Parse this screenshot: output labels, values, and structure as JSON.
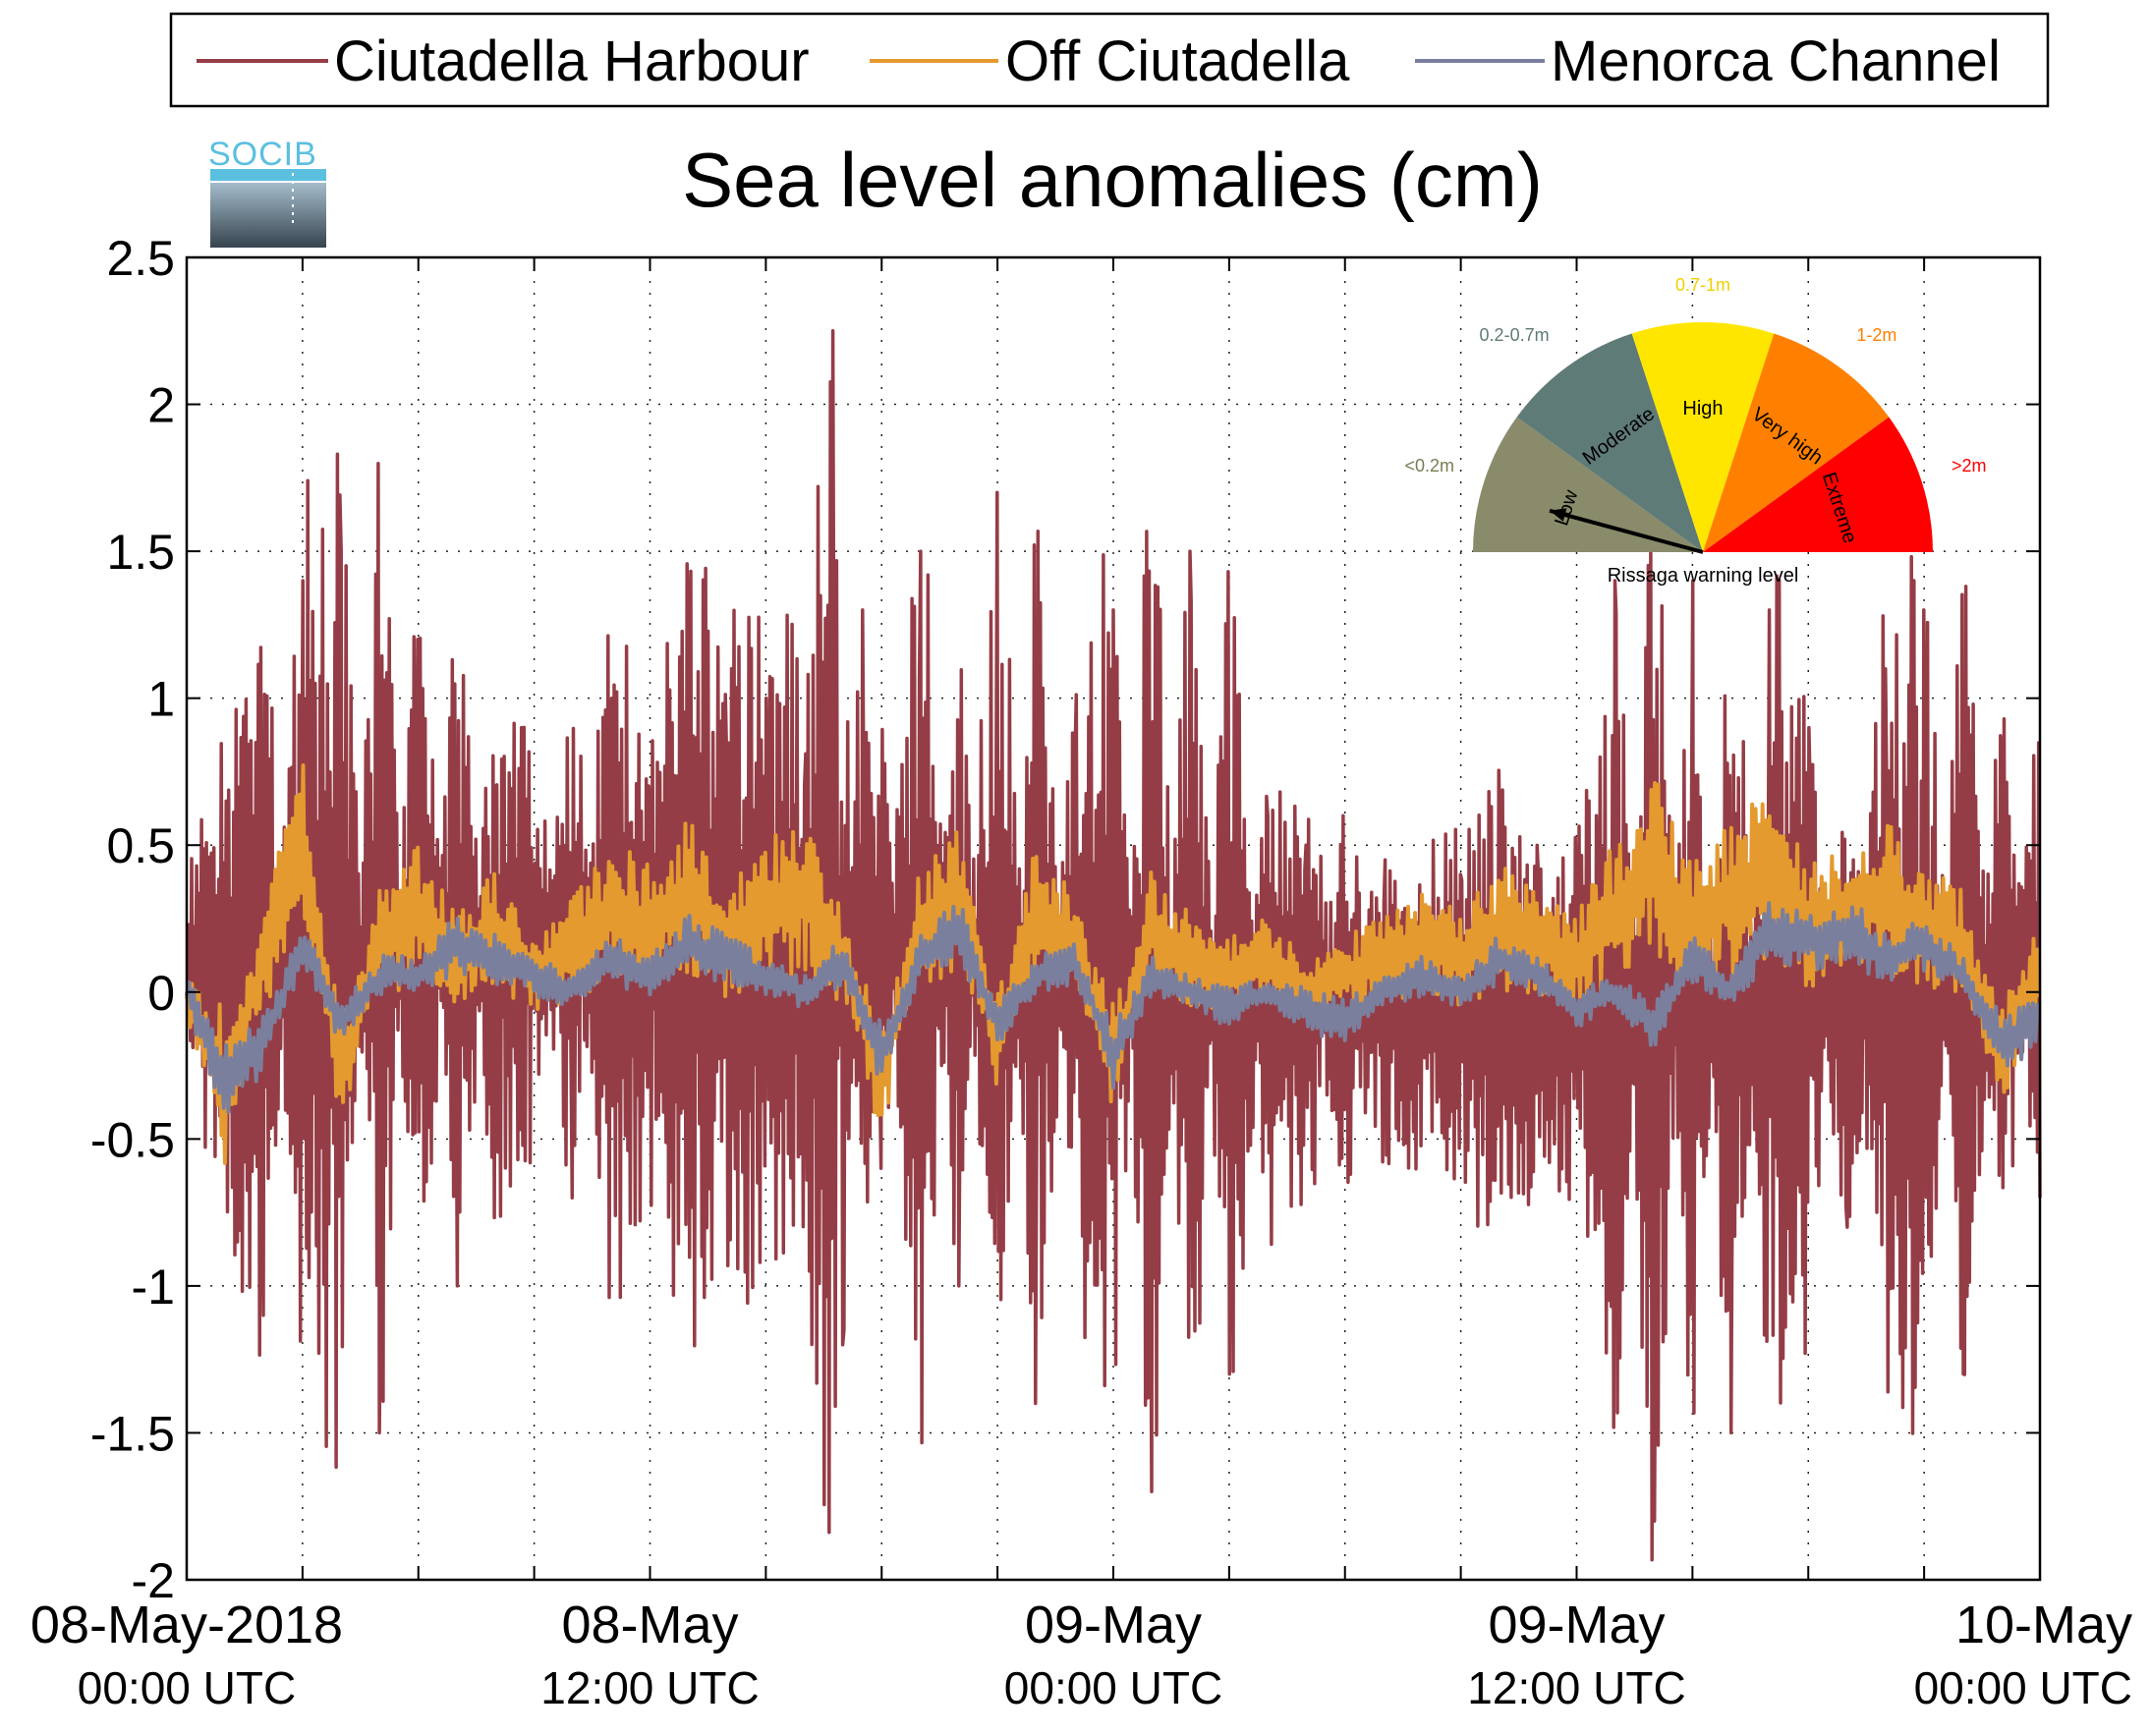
{
  "chart_data": {
    "type": "line",
    "title": "Sea level anomalies (cm)",
    "xlabel": "",
    "ylabel": "",
    "ylim": [
      -2,
      2.5
    ],
    "yticks": [
      "2.5",
      "2",
      "1.5",
      "1",
      "0.5",
      "0",
      "-0.5",
      "-1",
      "-1.5",
      "-2"
    ],
    "x_range_hours": [
      0,
      48
    ],
    "xticks": [
      {
        "date": "08-May-2018",
        "time": "00:00 UTC"
      },
      {
        "date": "08-May",
        "time": "12:00 UTC"
      },
      {
        "date": "09-May",
        "time": "00:00 UTC"
      },
      {
        "date": "09-May",
        "time": "12:00 UTC"
      },
      {
        "date": "10-May",
        "time": "00:00 UTC"
      }
    ],
    "grid": true,
    "legend_position": "top",
    "series": [
      {
        "name": "Ciutadella Harbour",
        "color": "#953d46",
        "x_hours": [
          0,
          2,
          3,
          4,
          5,
          6,
          7,
          8,
          9,
          10,
          11,
          12,
          13,
          14,
          15,
          16,
          16.75,
          17,
          17.5,
          18,
          19,
          20,
          21,
          22,
          23,
          24,
          25,
          26,
          27,
          28,
          29,
          30,
          31,
          32,
          33,
          34,
          35,
          36,
          36.5,
          37,
          38,
          39,
          40,
          41,
          42,
          43,
          44,
          45,
          46,
          47,
          48
        ],
        "values": [
          0.0,
          -1.1,
          1.4,
          1.5,
          -1.5,
          1.2,
          -1.0,
          0.7,
          0.4,
          -0.7,
          1.0,
          0.6,
          1.2,
          0.8,
          1.0,
          0.7,
          2.25,
          -1.2,
          1.3,
          -0.6,
          1.5,
          -1.0,
          1.7,
          -1.4,
          0.8,
          1.3,
          -1.7,
          1.5,
          -1.3,
          0.6,
          0.5,
          -0.4,
          0.3,
          0.2,
          0.4,
          0.5,
          0.4,
          0.3,
          0.6,
          1.4,
          -1.8,
          1.4,
          -1.5,
          1.3,
          0.9,
          -0.8,
          1.1,
          1.3,
          -1.3,
          0.8,
          -0.7
        ]
      },
      {
        "name": "Off Ciutadella",
        "color": "#e49a2e",
        "x_hours": [
          0,
          1,
          2,
          3,
          4,
          5,
          6,
          7,
          8,
          9,
          10,
          11,
          12,
          13,
          14,
          15,
          16,
          17,
          18,
          19,
          20,
          21,
          22,
          23,
          24,
          25,
          26,
          27,
          28,
          29,
          30,
          31,
          32,
          33,
          34,
          35,
          36,
          37,
          38,
          39,
          40,
          41,
          42,
          43,
          44,
          45,
          46,
          47,
          48
        ],
        "values": [
          0.0,
          -0.6,
          0.2,
          0.9,
          -0.5,
          0.3,
          0.5,
          0.2,
          0.4,
          0.1,
          0.3,
          0.5,
          0.4,
          0.6,
          0.3,
          0.5,
          0.6,
          0.2,
          -0.5,
          0.4,
          0.6,
          -0.3,
          0.5,
          0.3,
          -0.4,
          0.4,
          0.2,
          0.1,
          0.2,
          0.0,
          0.1,
          0.2,
          0.3,
          0.2,
          0.4,
          0.3,
          0.2,
          0.5,
          0.8,
          0.4,
          0.6,
          0.7,
          0.4,
          0.5,
          0.6,
          0.4,
          0.3,
          -0.4,
          0.2
        ]
      },
      {
        "name": "Menorca Channel",
        "color": "#7b7f9e",
        "x_hours": [
          0,
          1,
          2,
          3,
          4,
          5,
          6,
          7,
          8,
          9,
          10,
          11,
          12,
          13,
          14,
          15,
          16,
          17,
          18,
          19,
          20,
          21,
          22,
          23,
          24,
          25,
          26,
          27,
          28,
          29,
          30,
          31,
          32,
          33,
          34,
          35,
          36,
          37,
          38,
          39,
          40,
          41,
          42,
          43,
          44,
          45,
          46,
          47,
          48
        ],
        "values": [
          0.0,
          -0.6,
          -0.3,
          0.3,
          -0.2,
          0.1,
          0.1,
          0.3,
          0.2,
          0.1,
          0.0,
          0.2,
          0.1,
          0.3,
          0.2,
          0.1,
          0.0,
          0.2,
          -0.4,
          0.2,
          0.4,
          -0.2,
          0.1,
          0.2,
          -0.4,
          0.1,
          0.0,
          -0.1,
          0.0,
          -0.1,
          -0.2,
          0.0,
          0.1,
          0.0,
          0.2,
          0.1,
          -0.1,
          0.0,
          -0.2,
          0.2,
          0.0,
          0.4,
          0.3,
          0.4,
          0.2,
          0.3,
          0.1,
          -0.3,
          -0.2
        ]
      }
    ]
  },
  "logo": {
    "text": "SOCIB"
  },
  "gauge": {
    "caption": "Rissaga warning level",
    "segments": [
      {
        "label": "Low",
        "range": "<0.2m",
        "color": "#898b6a",
        "range_color": "#7a7c55"
      },
      {
        "label": "Moderate",
        "range": "0.2-0.7m",
        "color": "#5f7b78",
        "range_color": "#5f7b78"
      },
      {
        "label": "High",
        "range": "0.7-1m",
        "color": "#ffe600",
        "range_color": "#f0d000"
      },
      {
        "label": "Very high",
        "range": "1-2m",
        "color": "#ff8000",
        "range_color": "#ff8000"
      },
      {
        "label": "Extreme",
        "range": ">2m",
        "color": "#ff0000",
        "range_color": "#ff0000"
      }
    ],
    "pointer_level": "Low"
  }
}
